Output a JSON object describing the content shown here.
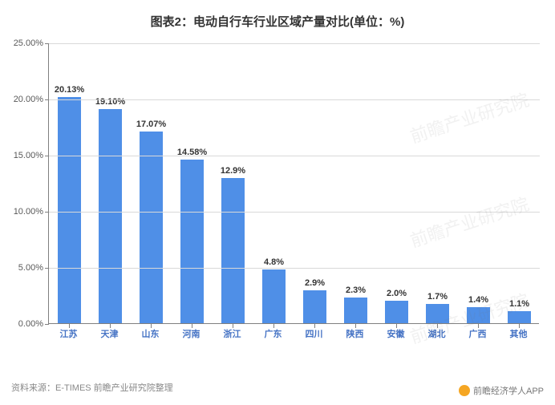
{
  "title": "图表2：电动自行车行业区域产量对比(单位：%)",
  "chart": {
    "type": "bar",
    "ylim": [
      0,
      25
    ],
    "ytick_step": 5,
    "y_tick_labels": [
      "0.00%",
      "5.00%",
      "10.00%",
      "15.00%",
      "20.00%",
      "25.00%"
    ],
    "categories": [
      "江苏",
      "天津",
      "山东",
      "河南",
      "浙江",
      "广东",
      "四川",
      "陕西",
      "安徽",
      "湖北",
      "广西",
      "其他"
    ],
    "values": [
      20.13,
      19.1,
      17.07,
      14.58,
      12.9,
      4.8,
      2.9,
      2.3,
      2.0,
      1.7,
      1.4,
      1.1
    ],
    "value_labels": [
      "20.13%",
      "19.10%",
      "17.07%",
      "14.58%",
      "12.9%",
      "4.8%",
      "2.9%",
      "2.3%",
      "2.0%",
      "1.7%",
      "1.4%",
      "1.1%"
    ],
    "bar_color": "#4f8fe7",
    "grid_color": "#d9d9d9",
    "axis_color": "#808080",
    "background_color": "#ffffff",
    "x_label_color": "#4472c4",
    "y_label_color": "#595959",
    "value_label_color": "#333333",
    "title_fontsize": 15,
    "label_fontsize": 11,
    "bar_width": 0.56
  },
  "source": "资料来源：E-TIMES 前瞻产业研究院整理",
  "watermark": "前瞻产业研究院",
  "footer_brand": "前瞻经济学人APP"
}
